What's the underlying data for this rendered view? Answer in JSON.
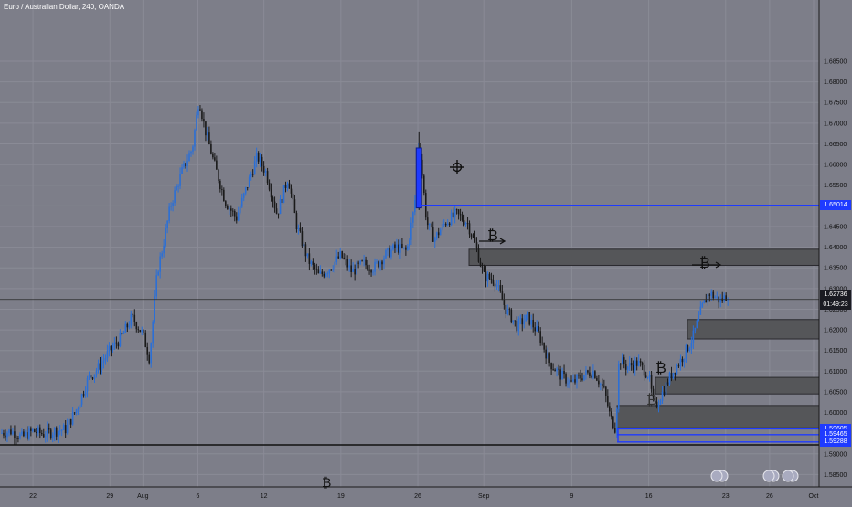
{
  "chart_data": {
    "type": "candlestick",
    "title": "Euro / Australian Dollar, 240, OANDA",
    "interval": "240",
    "ylim": [
      1.582,
      1.6998
    ],
    "y_ticks": [
      1.585,
      1.59,
      1.6,
      1.605,
      1.61,
      1.615,
      1.62,
      1.625,
      1.63,
      1.635,
      1.64,
      1.645,
      1.65,
      1.655,
      1.66,
      1.665,
      1.67,
      1.675,
      1.68,
      1.685
    ],
    "y_tick_labels": [
      "1.58500",
      "1.59000",
      "1.60000",
      "1.60500",
      "1.61000",
      "1.61500",
      "1.62000",
      "1.62500",
      "1.63000",
      "1.63500",
      "1.64000",
      "1.64500",
      "1.65000",
      "1.65500",
      "1.66000",
      "1.66500",
      "1.67000",
      "1.67500",
      "1.68000",
      "1.68500"
    ],
    "x_ticks": [
      "22",
      "29",
      "Aug",
      "6",
      "12",
      "19",
      "26",
      "Sep",
      "9",
      "16",
      "23",
      "26",
      "Oct"
    ],
    "x_tick_day": [
      22,
      29,
      32,
      37,
      43,
      50,
      57,
      63,
      71,
      78,
      85,
      89,
      93
    ],
    "price_path": [
      [
        19,
        1.595
      ],
      [
        20,
        1.5955
      ],
      [
        21,
        1.594
      ],
      [
        22,
        1.5955
      ],
      [
        23,
        1.5948
      ],
      [
        24,
        1.5955
      ],
      [
        25,
        1.596
      ],
      [
        26,
        1.601
      ],
      [
        27,
        1.608
      ],
      [
        28,
        1.611
      ],
      [
        29,
        1.615
      ],
      [
        30,
        1.618
      ],
      [
        31,
        1.623
      ],
      [
        32,
        1.619
      ],
      [
        32.6,
        1.613
      ],
      [
        33.3,
        1.634
      ],
      [
        33.8,
        1.64
      ],
      [
        34.5,
        1.65
      ],
      [
        35.5,
        1.658
      ],
      [
        36.5,
        1.664
      ],
      [
        37.1,
        1.676
      ],
      [
        37.6,
        1.669
      ],
      [
        38.5,
        1.66
      ],
      [
        39.5,
        1.651
      ],
      [
        40.5,
        1.647
      ],
      [
        41.5,
        1.655
      ],
      [
        42.4,
        1.662
      ],
      [
        43.2,
        1.658
      ],
      [
        44.2,
        1.648
      ],
      [
        45.2,
        1.657
      ],
      [
        46.0,
        1.645
      ],
      [
        47.0,
        1.637
      ],
      [
        48.0,
        1.633
      ],
      [
        49.0,
        1.635
      ],
      [
        50.0,
        1.638
      ],
      [
        51.0,
        1.634
      ],
      [
        52.0,
        1.636
      ],
      [
        53.0,
        1.635
      ],
      [
        54.0,
        1.638
      ],
      [
        55.0,
        1.64
      ],
      [
        56.0,
        1.639
      ],
      [
        56.7,
        1.65
      ],
      [
        57.1,
        1.666
      ],
      [
        57.8,
        1.646
      ],
      [
        58.5,
        1.642
      ],
      [
        59.5,
        1.646
      ],
      [
        60.5,
        1.648
      ],
      [
        61.5,
        1.646
      ],
      [
        62.3,
        1.64
      ],
      [
        63.0,
        1.633
      ],
      [
        64.0,
        1.632
      ],
      [
        65.0,
        1.625
      ],
      [
        66.0,
        1.621
      ],
      [
        67.0,
        1.623
      ],
      [
        68.0,
        1.619
      ],
      [
        69.0,
        1.612
      ],
      [
        70.0,
        1.609
      ],
      [
        71.0,
        1.607
      ],
      [
        72.0,
        1.609
      ],
      [
        73.0,
        1.61
      ],
      [
        74.0,
        1.605
      ],
      [
        74.5,
        1.599
      ],
      [
        75.0,
        1.596
      ],
      [
        75.3,
        1.613
      ],
      [
        76.0,
        1.611
      ],
      [
        77.0,
        1.612
      ],
      [
        78.0,
        1.609
      ],
      [
        78.5,
        1.601
      ],
      [
        79.3,
        1.605
      ],
      [
        80.0,
        1.609
      ],
      [
        81.0,
        1.613
      ],
      [
        82.0,
        1.618
      ],
      [
        82.8,
        1.625
      ],
      [
        83.5,
        1.629
      ],
      [
        84.5,
        1.627
      ],
      [
        85.2,
        1.6285
      ]
    ],
    "horizontal_lines": [
      {
        "price": 1.65014,
        "label": "1.65014",
        "color": "#1f3bff"
      },
      {
        "price": 1.59605,
        "label": "1.59605",
        "color": "#1f3bff"
      },
      {
        "price": 1.59465,
        "label": "1.59465",
        "color": "#1f3bff"
      },
      {
        "price": 1.59288,
        "label": "1.59288",
        "color": "#1f3bff"
      }
    ],
    "current_price": {
      "price": 1.62736,
      "label": "1.62736",
      "countdown": "01:49:23"
    },
    "zones": [
      {
        "top": 1.6395,
        "bottom": 1.6356
      },
      {
        "top": 1.6225,
        "bottom": 1.6178
      },
      {
        "top": 1.6085,
        "bottom": 1.6045
      },
      {
        "top": 1.6017,
        "bottom": 1.5963
      }
    ],
    "colors": {
      "background": "#7d7e89",
      "bull": "#2b6fd6",
      "bear": "#1a1a1a",
      "line": "#1f3bff",
      "zone": "#555659"
    }
  }
}
